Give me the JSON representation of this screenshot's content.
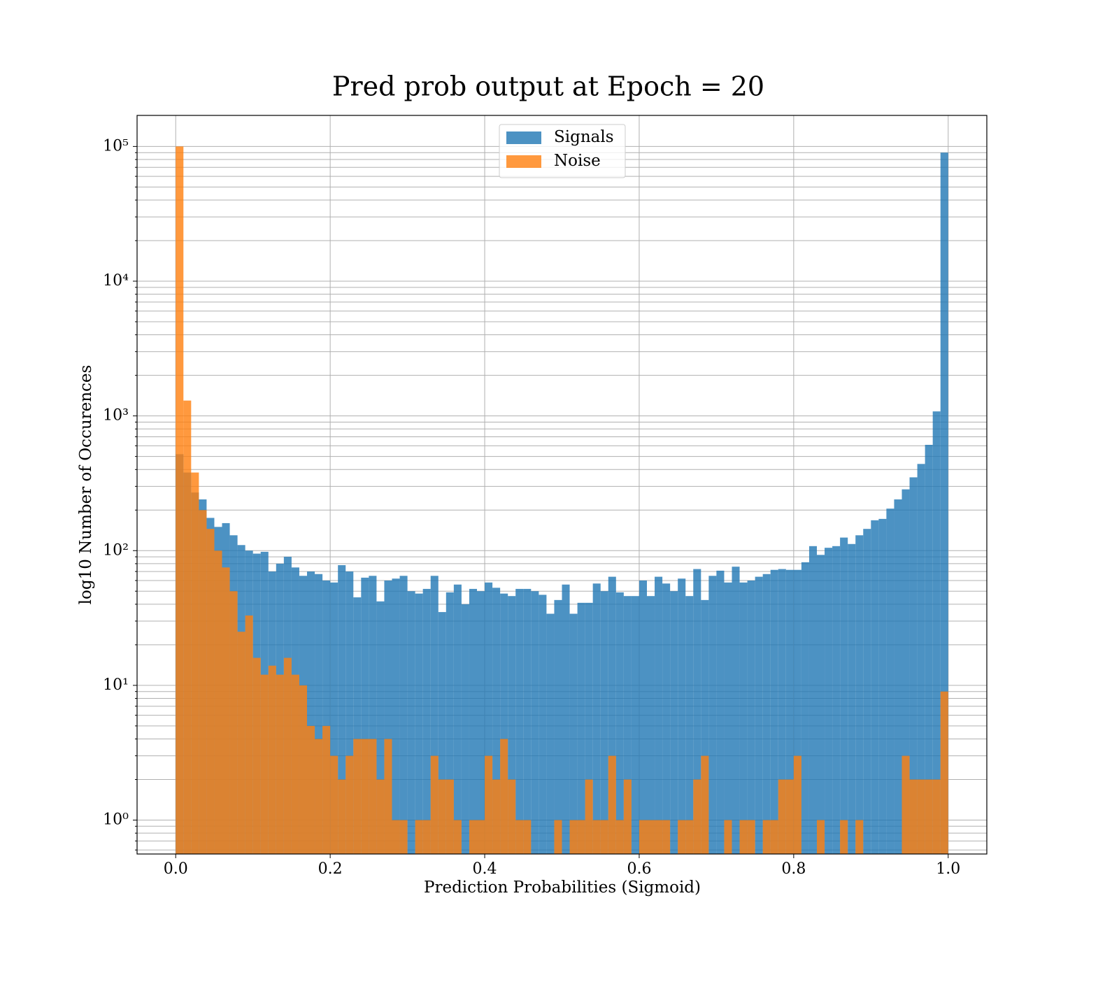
{
  "chart_data": {
    "type": "histogram",
    "title": "Pred prob output at Epoch = 20",
    "xlabel": "Prediction Probabilities (Sigmoid)",
    "ylabel": "log10 Number of Occurences",
    "log_y": true,
    "grid": true,
    "minor_grid": true,
    "legend": "upper center",
    "alpha": 0.8,
    "xlim": [
      -0.05,
      1.05
    ],
    "ylim": [
      0.56,
      170000
    ],
    "xticks": [
      {
        "value": 0,
        "label": "0.0"
      },
      0.2,
      0.4,
      0.6,
      0.8,
      {
        "value": 1,
        "label": "1.0"
      }
    ],
    "yticks": [
      {
        "value": 1,
        "label": "10⁰"
      },
      {
        "value": 10,
        "label": "10¹"
      },
      {
        "value": 100,
        "label": "10²"
      },
      {
        "value": 1000,
        "label": "10³"
      },
      {
        "value": 10000,
        "label": "10⁴"
      },
      {
        "value": 100000,
        "label": "10⁵"
      }
    ],
    "bins": [
      0,
      0.01,
      0.02,
      0.03,
      0.04,
      0.05,
      0.06,
      0.07,
      0.08,
      0.09,
      0.1,
      0.11,
      0.12,
      0.13,
      0.14,
      0.15,
      0.16,
      0.17,
      0.18,
      0.19,
      0.2,
      0.21,
      0.22,
      0.23,
      0.24,
      0.25,
      0.26,
      0.27,
      0.28,
      0.29,
      0.3,
      0.31,
      0.32,
      0.33,
      0.34,
      0.35,
      0.36,
      0.37,
      0.38,
      0.39,
      0.4,
      0.41,
      0.42,
      0.43,
      0.44,
      0.45,
      0.46,
      0.47,
      0.48,
      0.49,
      0.5,
      0.51,
      0.52,
      0.53,
      0.54,
      0.55,
      0.56,
      0.57,
      0.58,
      0.59,
      0.6,
      0.61,
      0.62,
      0.63,
      0.64,
      0.65,
      0.66,
      0.67,
      0.68,
      0.69,
      0.7,
      0.71,
      0.72,
      0.73,
      0.74,
      0.75,
      0.76,
      0.77,
      0.78,
      0.79,
      0.8,
      0.81,
      0.82,
      0.83,
      0.84,
      0.85,
      0.86,
      0.87,
      0.88,
      0.89,
      0.9,
      0.91,
      0.92,
      0.93,
      0.94,
      0.95,
      0.96,
      0.97,
      0.98,
      0.99,
      1
    ],
    "series": [
      {
        "name": "Signals",
        "color": "#1f77b4",
        "values": [
          520,
          380,
          270,
          240,
          175,
          150,
          160,
          130,
          110,
          100,
          95,
          98,
          70,
          80,
          90,
          75,
          65,
          70,
          67,
          60,
          58,
          78,
          70,
          45,
          63,
          65,
          42,
          60,
          62,
          65,
          50,
          48,
          52,
          65,
          35,
          49,
          56,
          40,
          52,
          50,
          58,
          53,
          48,
          46,
          52,
          52,
          50,
          47,
          34,
          43,
          56,
          34,
          41,
          41,
          57,
          50,
          64,
          49,
          46,
          46,
          60,
          46,
          64,
          57,
          50,
          62,
          46,
          73,
          43,
          65,
          71,
          58,
          76,
          58,
          60,
          64,
          67,
          72,
          73,
          72,
          72,
          82,
          108,
          93,
          105,
          108,
          125,
          112,
          130,
          145,
          168,
          172,
          205,
          240,
          285,
          350,
          440,
          610,
          1080,
          90000
        ]
      },
      {
        "name": "Noise",
        "color": "#ff7f0e",
        "values": [
          100000,
          1300,
          380,
          200,
          145,
          100,
          75,
          50,
          25,
          33,
          16,
          12,
          14,
          12,
          16,
          12,
          10,
          5,
          4,
          5,
          3,
          2,
          3,
          4,
          4,
          4,
          2,
          4,
          1,
          1,
          0,
          1,
          1,
          3,
          2,
          2,
          1,
          0,
          1,
          1,
          3,
          2,
          4,
          2,
          1,
          1,
          0,
          0,
          0,
          1,
          0,
          1,
          1,
          2,
          1,
          1,
          3,
          1,
          2,
          0,
          1,
          1,
          1,
          1,
          0,
          1,
          1,
          2,
          3,
          0,
          0,
          1,
          0,
          1,
          1,
          0,
          1,
          1,
          2,
          2,
          3,
          0,
          0,
          1,
          0,
          0,
          1,
          0,
          1,
          0,
          0,
          0,
          0,
          0,
          3,
          2,
          2,
          2,
          2,
          9
        ]
      }
    ]
  }
}
